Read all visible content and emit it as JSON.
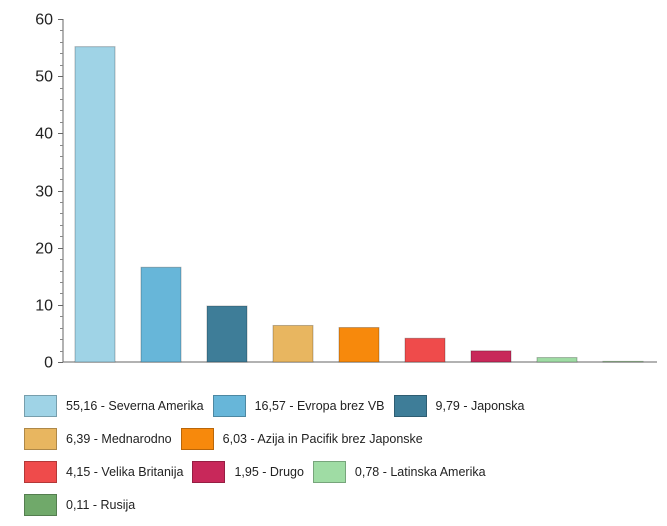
{
  "chart_data": {
    "type": "bar",
    "ylim": [
      0,
      60
    ],
    "yticks": [
      0,
      10,
      20,
      30,
      40,
      50,
      60
    ],
    "ytick_labels": [
      "0",
      "10",
      "20",
      "30",
      "40",
      "50",
      "60"
    ],
    "grid": false,
    "legend_position": "bottom",
    "series": [
      {
        "label": "55,16 - Severna Amerika",
        "value": 55.16,
        "color": "#9fd3e6"
      },
      {
        "label": "16,57 - Evropa brez VB",
        "value": 16.57,
        "color": "#67b6d9"
      },
      {
        "label": "9,79 - Japonska",
        "value": 9.79,
        "color": "#3e7d98"
      },
      {
        "label": "6,39 - Mednarodno",
        "value": 6.39,
        "color": "#e8b660"
      },
      {
        "label": "6,03 - Azija in Pacifik brez Japonske",
        "value": 6.03,
        "color": "#f7890c"
      },
      {
        "label": "4,15 - Velika Britanija",
        "value": 4.15,
        "color": "#ef4b4b"
      },
      {
        "label": "1,95 - Drugo",
        "value": 1.95,
        "color": "#c8285a"
      },
      {
        "label": "0,78 - Latinska Amerika",
        "value": 0.78,
        "color": "#9fdca4"
      },
      {
        "label": "0,11 - Rusija",
        "value": 0.11,
        "color": "#70a96a"
      }
    ]
  },
  "legend_rows": [
    [
      0,
      1,
      2
    ],
    [
      3,
      4
    ],
    [
      5,
      6,
      7
    ],
    [
      8
    ]
  ]
}
